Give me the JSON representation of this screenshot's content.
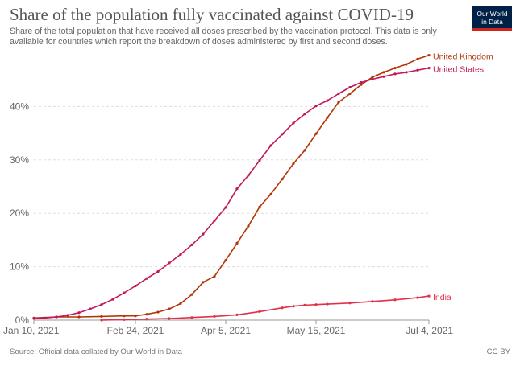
{
  "header": {
    "title": "Share of the population fully vaccinated against COVID-19",
    "subtitle": "Share of the total population that have received all doses prescribed by the vaccination protocol. This data is only available for countries which report the breakdown of doses administered by first and second doses.",
    "logo_line1": "Our World",
    "logo_line2": "in Data"
  },
  "footer": {
    "source": "Source: Official data collated by Our World in Data",
    "license": "CC BY"
  },
  "chart_data": {
    "type": "line",
    "title": "Share of the population fully vaccinated against COVID-19",
    "xlabel": "",
    "ylabel": "",
    "x_range_days": [
      0,
      175
    ],
    "ylim": [
      0,
      50
    ],
    "x_ticks": [
      {
        "day": 0,
        "label": "Jan 10, 2021"
      },
      {
        "day": 45,
        "label": "Feb 24, 2021"
      },
      {
        "day": 85,
        "label": "Apr 5, 2021"
      },
      {
        "day": 125,
        "label": "May 15, 2021"
      },
      {
        "day": 175,
        "label": "Jul 4, 2021"
      }
    ],
    "y_ticks": [
      {
        "value": 0,
        "label": "0%"
      },
      {
        "value": 10,
        "label": "10%"
      },
      {
        "value": 20,
        "label": "20%"
      },
      {
        "value": 30,
        "label": "30%"
      },
      {
        "value": 40,
        "label": "40%"
      }
    ],
    "series": [
      {
        "name": "United Kingdom",
        "color": "#b13507",
        "points": [
          [
            0,
            0.4
          ],
          [
            10,
            0.6
          ],
          [
            20,
            0.6
          ],
          [
            30,
            0.7
          ],
          [
            40,
            0.8
          ],
          [
            45,
            0.8
          ],
          [
            50,
            1.1
          ],
          [
            55,
            1.5
          ],
          [
            60,
            2.1
          ],
          [
            65,
            3.1
          ],
          [
            70,
            4.8
          ],
          [
            75,
            7.1
          ],
          [
            80,
            8.2
          ],
          [
            85,
            11.2
          ],
          [
            90,
            14.4
          ],
          [
            95,
            17.6
          ],
          [
            100,
            21.2
          ],
          [
            105,
            23.6
          ],
          [
            110,
            26.4
          ],
          [
            115,
            29.3
          ],
          [
            120,
            31.8
          ],
          [
            125,
            34.9
          ],
          [
            130,
            37.9
          ],
          [
            135,
            40.8
          ],
          [
            140,
            42.4
          ],
          [
            145,
            44.1
          ],
          [
            150,
            45.5
          ],
          [
            155,
            46.4
          ],
          [
            160,
            47.2
          ],
          [
            165,
            47.9
          ],
          [
            170,
            48.9
          ],
          [
            175,
            49.6
          ]
        ]
      },
      {
        "name": "United States",
        "color": "#c2185b",
        "points": [
          [
            0,
            0.3
          ],
          [
            5,
            0.4
          ],
          [
            10,
            0.6
          ],
          [
            15,
            0.9
          ],
          [
            20,
            1.4
          ],
          [
            25,
            2.1
          ],
          [
            30,
            2.9
          ],
          [
            35,
            3.9
          ],
          [
            40,
            5.1
          ],
          [
            45,
            6.4
          ],
          [
            50,
            7.8
          ],
          [
            55,
            9.1
          ],
          [
            60,
            10.7
          ],
          [
            65,
            12.3
          ],
          [
            70,
            14.1
          ],
          [
            75,
            16.1
          ],
          [
            80,
            18.6
          ],
          [
            85,
            21.1
          ],
          [
            90,
            24.6
          ],
          [
            95,
            27.1
          ],
          [
            100,
            29.9
          ],
          [
            105,
            32.7
          ],
          [
            110,
            34.8
          ],
          [
            115,
            36.9
          ],
          [
            120,
            38.6
          ],
          [
            125,
            40.1
          ],
          [
            130,
            41.1
          ],
          [
            135,
            42.4
          ],
          [
            140,
            43.6
          ],
          [
            145,
            44.5
          ],
          [
            150,
            45.1
          ],
          [
            155,
            45.6
          ],
          [
            160,
            46.1
          ],
          [
            165,
            46.4
          ],
          [
            170,
            46.8
          ],
          [
            175,
            47.2
          ]
        ]
      },
      {
        "name": "India",
        "color": "#e0314b",
        "points": [
          [
            30,
            0.0
          ],
          [
            40,
            0.1
          ],
          [
            50,
            0.2
          ],
          [
            60,
            0.3
          ],
          [
            70,
            0.5
          ],
          [
            80,
            0.7
          ],
          [
            90,
            1.0
          ],
          [
            100,
            1.6
          ],
          [
            110,
            2.3
          ],
          [
            115,
            2.6
          ],
          [
            120,
            2.8
          ],
          [
            125,
            2.9
          ],
          [
            130,
            3.0
          ],
          [
            140,
            3.2
          ],
          [
            150,
            3.5
          ],
          [
            160,
            3.8
          ],
          [
            170,
            4.2
          ],
          [
            175,
            4.5
          ]
        ]
      }
    ]
  }
}
